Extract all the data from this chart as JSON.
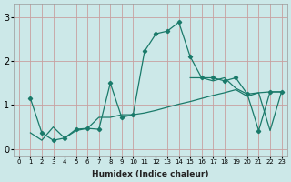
{
  "xlabel": "Humidex (Indice chaleur)",
  "x_ticks": [
    0,
    1,
    2,
    3,
    4,
    5,
    6,
    7,
    8,
    9,
    10,
    11,
    12,
    13,
    14,
    15,
    16,
    17,
    18,
    19,
    20,
    21,
    22,
    23
  ],
  "y_ticks": [
    0,
    1,
    2,
    3
  ],
  "ylim": [
    -0.15,
    3.3
  ],
  "xlim": [
    -0.5,
    23.5
  ],
  "bg_color": "#cce8e8",
  "grid_color": "#c8a0a0",
  "line_color": "#1a7a6a",
  "line1_x": [
    1,
    2,
    3,
    4,
    5,
    6,
    7,
    8,
    9,
    10,
    11,
    12,
    13,
    14,
    15,
    16,
    17,
    18,
    19,
    20,
    21,
    22,
    23
  ],
  "line1_y": [
    1.15,
    0.37,
    0.2,
    0.25,
    0.45,
    0.47,
    0.45,
    1.5,
    0.72,
    0.78,
    2.22,
    2.62,
    2.68,
    2.88,
    2.1,
    1.62,
    1.62,
    1.55,
    1.62,
    1.25,
    0.42,
    1.3,
    1.3
  ],
  "line2_x": [
    1,
    2,
    3,
    4,
    5,
    6,
    7,
    8,
    9,
    10,
    11,
    12,
    13,
    14,
    15,
    16,
    17,
    18,
    19,
    20,
    21,
    22,
    23
  ],
  "line2_y": [
    0.37,
    0.2,
    0.5,
    0.25,
    0.42,
    0.47,
    0.72,
    0.72,
    0.78,
    0.78,
    0.82,
    0.88,
    0.95,
    1.02,
    1.08,
    1.15,
    1.22,
    1.28,
    1.35,
    1.2,
    1.28,
    1.3,
    1.3
  ],
  "line3_x": [
    15,
    16,
    17,
    18,
    19,
    20,
    21,
    22,
    23
  ],
  "line3_y": [
    1.62,
    1.62,
    1.55,
    1.62,
    1.38,
    1.25,
    1.28,
    0.42,
    1.3
  ]
}
